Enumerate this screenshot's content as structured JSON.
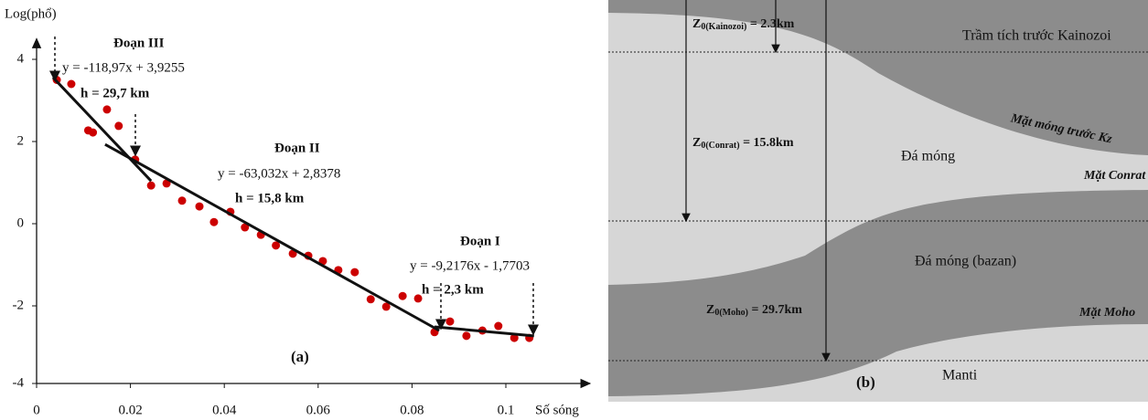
{
  "chart_data": {
    "type": "scatter",
    "x_label": "Số sóng",
    "y_label": "Log(phổ)",
    "panel_label": "(a)",
    "color": "#cc0000",
    "x": [
      0.0043,
      0.0074,
      0.011,
      0.012,
      0.015,
      0.0175,
      0.021,
      0.0244,
      0.0277,
      0.031,
      0.0347,
      0.0378,
      0.0413,
      0.0444,
      0.0478,
      0.051,
      0.0546,
      0.0579,
      0.061,
      0.0643,
      0.0678,
      0.0712,
      0.0745,
      0.078,
      0.0813,
      0.0848,
      0.0881,
      0.0916,
      0.095,
      0.0984,
      0.1018,
      0.105
    ],
    "values": [
      3.5,
      3.4,
      2.27,
      2.22,
      2.78,
      2.38,
      1.56,
      0.93,
      0.98,
      0.56,
      0.42,
      0.04,
      0.29,
      -0.09,
      -0.27,
      -0.53,
      -0.73,
      -0.78,
      -0.91,
      -1.13,
      -1.18,
      -1.84,
      -2.02,
      -1.76,
      -1.82,
      -2.64,
      -2.38,
      -2.73,
      -2.6,
      -2.49,
      -2.78,
      -2.78
    ],
    "fit_lines": [
      {
        "x": [
          0.0035,
          0.0244
        ],
        "values": [
          3.56,
          1.04
        ]
      },
      {
        "x": [
          0.0146,
          0.0858
        ],
        "values": [
          1.93,
          -2.6
        ]
      },
      {
        "x": [
          0.0848,
          0.106
        ],
        "values": [
          -2.51,
          -2.73
        ]
      }
    ],
    "xlim": [
      0,
      0.115
    ],
    "ylim": [
      -4,
      4.5
    ],
    "xticks": [
      0,
      0.02,
      0.04,
      0.06,
      0.08,
      0.1
    ],
    "yticks": [
      -4,
      -2,
      0,
      2,
      4
    ],
    "annotations": [
      "Đoạn III",
      "y = -118,97x + 3,9255",
      "h = 29,7 km",
      "Đoạn II",
      "y = -63,032x + 2,8378",
      "h = 15,8 km",
      "Đoạn I",
      "y = -9,2176x - 1,7703",
      "h = 2,3 km"
    ]
  },
  "diagram": {
    "panel_label": "(b)",
    "layers": [
      "Trầm tích trước Kainozoi",
      "Đá móng",
      "Đá móng (bazan)",
      "Manti"
    ],
    "surfaces": [
      "Mặt móng trước Kz",
      "Mặt Conrat",
      "Mặt Moho"
    ],
    "depths": [
      {
        "symbol": "Z",
        "subscript": "0(Kainozoi)",
        "value": " = 2.3km"
      },
      {
        "symbol": "Z",
        "subscript": "0(Conrat)",
        "value": " = 15.8km"
      },
      {
        "symbol": "Z",
        "subscript": "0(Moho)",
        "value": " = 29.7km"
      }
    ]
  }
}
